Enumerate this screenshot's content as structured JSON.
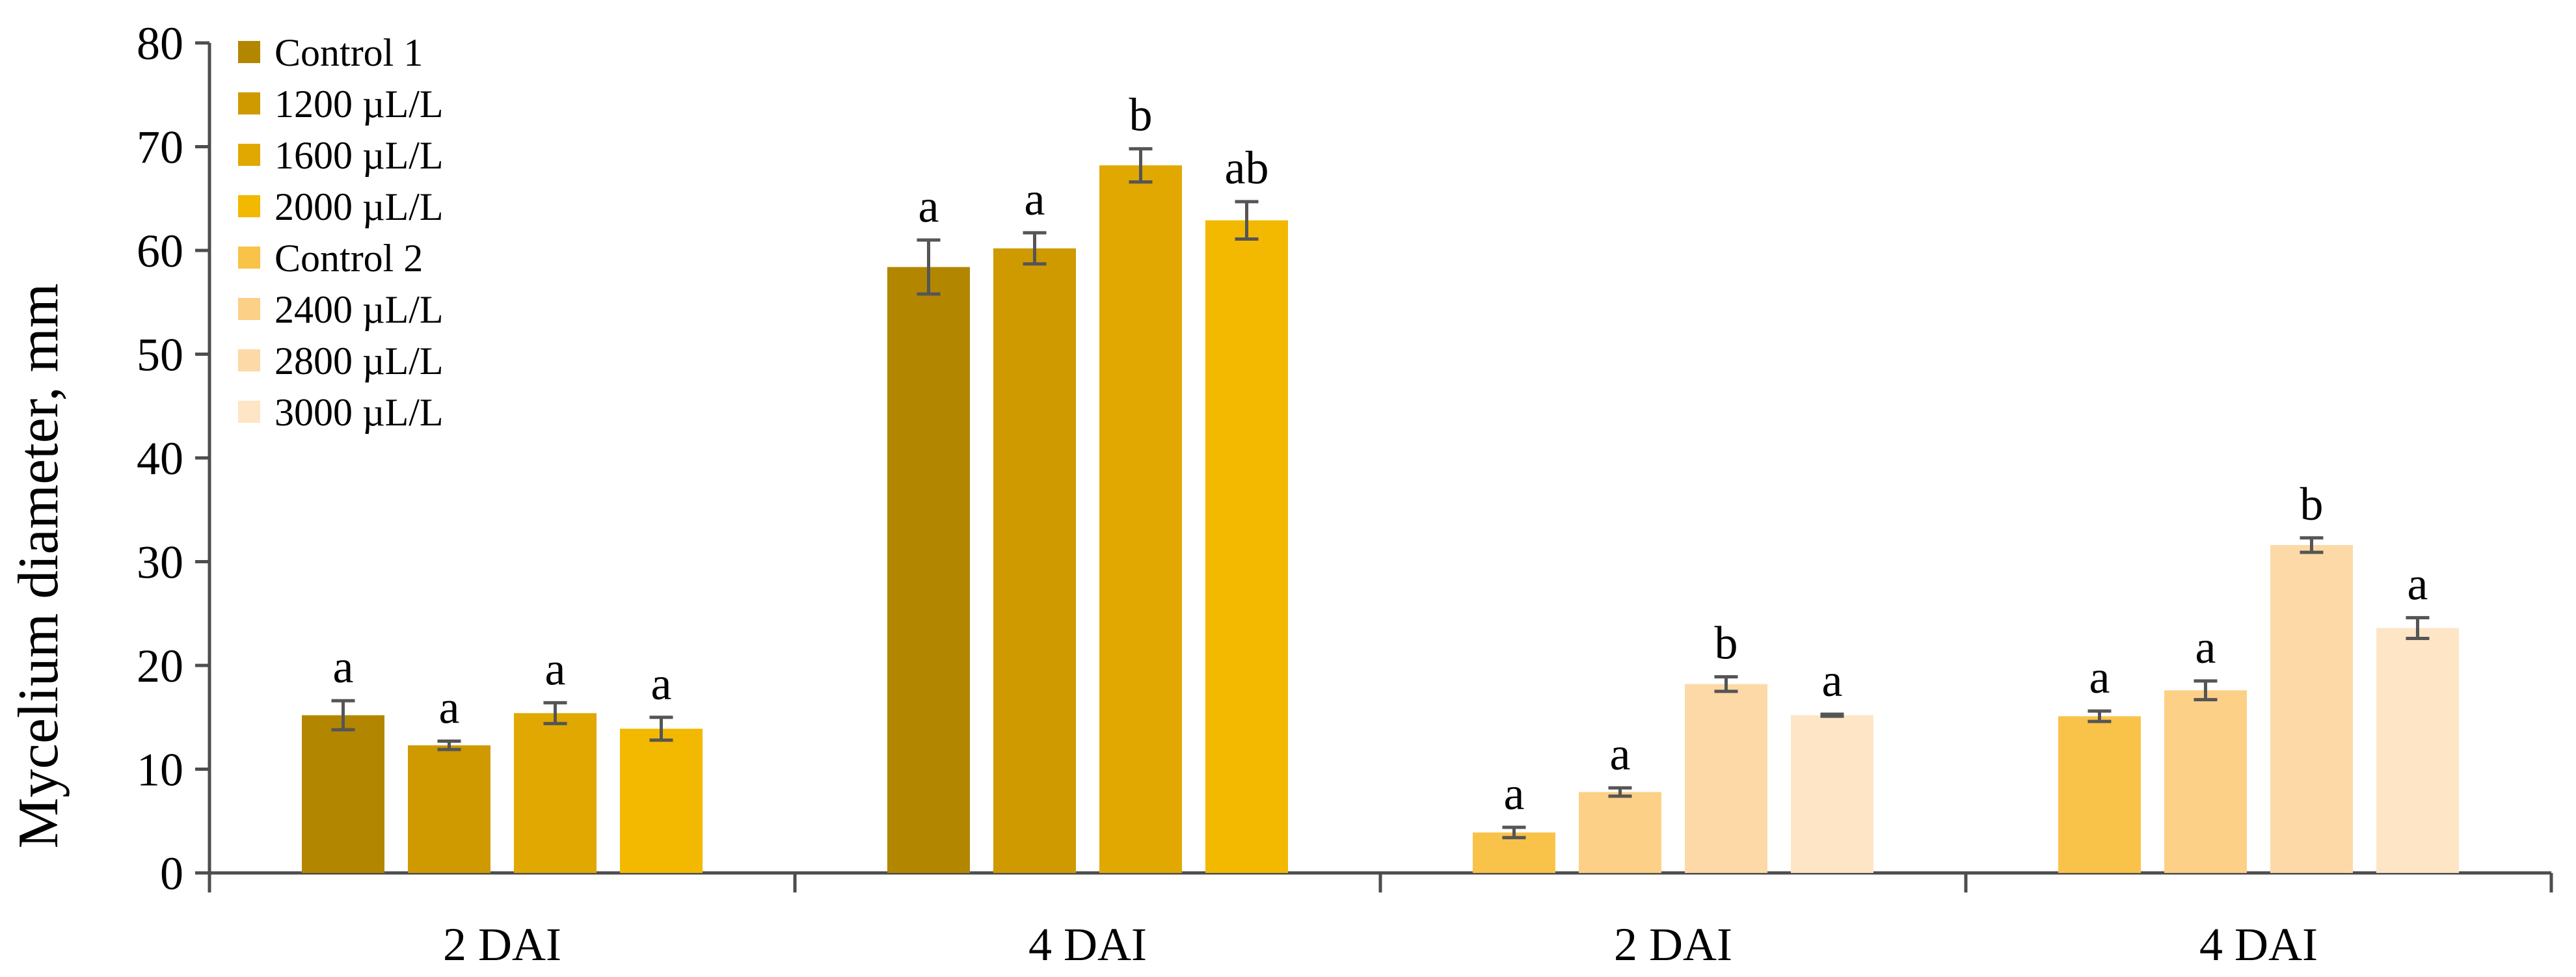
{
  "chart_data": {
    "type": "bar",
    "title": "",
    "xlabel": "",
    "ylabel": "Mycelium diameter, mm",
    "ylim": [
      0,
      80
    ],
    "yticks": [
      0,
      10,
      20,
      30,
      40,
      50,
      60,
      70,
      80
    ],
    "grid": false,
    "legend_position": "top-left",
    "series": [
      {
        "name": "Control 1",
        "color": "#B38600"
      },
      {
        "name": "1200 µL/L",
        "color": "#CE9A00"
      },
      {
        "name": "1600 µL/L",
        "color": "#E0A800"
      },
      {
        "name": "2000 µL/L",
        "color": "#F3B800"
      },
      {
        "name": "Control 2",
        "color": "#F9C34A"
      },
      {
        "name": "2400 µL/L",
        "color": "#FDD088"
      },
      {
        "name": "2800 µL/L",
        "color": "#FCD9A6"
      },
      {
        "name": "3000 µL/L",
        "color": "#FDE5C6"
      }
    ],
    "groups": [
      {
        "label": "2 DAI",
        "bars": [
          {
            "series": "Control 1",
            "value": 15.2,
            "error": 1.4,
            "letter": "a"
          },
          {
            "series": "1200 µL/L",
            "value": 12.3,
            "error": 0.4,
            "letter": "a"
          },
          {
            "series": "1600 µL/L",
            "value": 15.4,
            "error": 1.0,
            "letter": "a"
          },
          {
            "series": "2000 µL/L",
            "value": 13.9,
            "error": 1.1,
            "letter": "a"
          }
        ]
      },
      {
        "label": "4 DAI",
        "bars": [
          {
            "series": "Control 1",
            "value": 58.4,
            "error": 2.6,
            "letter": "a"
          },
          {
            "series": "1200 µL/L",
            "value": 60.2,
            "error": 1.5,
            "letter": "a"
          },
          {
            "series": "1600 µL/L",
            "value": 68.2,
            "error": 1.6,
            "letter": "b"
          },
          {
            "series": "2000 µL/L",
            "value": 62.9,
            "error": 1.8,
            "letter": "ab"
          }
        ]
      },
      {
        "label": "2 DAI",
        "bars": [
          {
            "series": "Control 2",
            "value": 3.9,
            "error": 0.5,
            "letter": "a"
          },
          {
            "series": "2400 µL/L",
            "value": 7.8,
            "error": 0.4,
            "letter": "a"
          },
          {
            "series": "2800 µL/L",
            "value": 18.2,
            "error": 0.7,
            "letter": "b"
          },
          {
            "series": "3000 µL/L",
            "value": 15.2,
            "error": 0.1,
            "letter": "a"
          }
        ]
      },
      {
        "label": "4 DAI",
        "bars": [
          {
            "series": "Control 2",
            "value": 15.1,
            "error": 0.5,
            "letter": "a"
          },
          {
            "series": "2400 µL/L",
            "value": 17.6,
            "error": 0.9,
            "letter": "a"
          },
          {
            "series": "2800 µL/L",
            "value": 31.6,
            "error": 0.7,
            "letter": "b"
          },
          {
            "series": "3000 µL/L",
            "value": 23.6,
            "error": 1.0,
            "letter": "a"
          }
        ]
      }
    ]
  }
}
